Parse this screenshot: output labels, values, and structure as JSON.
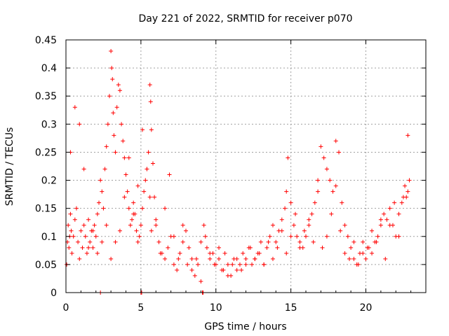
{
  "chart_data": {
    "type": "scatter",
    "title": "Day 221 of 2022, SRMTID for receiver p070",
    "xlabel": "GPS time / hours",
    "ylabel": "SRMTID / TECUs",
    "xlim": [
      0,
      24
    ],
    "ylim": [
      0,
      0.45
    ],
    "xticks": [
      0,
      5,
      10,
      15,
      20
    ],
    "xtick_labels": [
      "0",
      "5",
      "10",
      "15",
      "20"
    ],
    "yticks": [
      0,
      0.05,
      0.1,
      0.15,
      0.2,
      0.25,
      0.3,
      0.35,
      0.4,
      0.45
    ],
    "ytick_labels": [
      "0",
      "0.05",
      "0.1",
      "0.15",
      "0.2",
      "0.25",
      "0.3",
      "0.35",
      "0.4",
      "0.45"
    ],
    "grid": true,
    "marker": "+",
    "color": "#ff0000",
    "series": [
      {
        "name": "SRMTID",
        "x": [
          0.05,
          0.1,
          0.15,
          0.2,
          0.25,
          0.3,
          0.35,
          0.4,
          0.5,
          0.6,
          0.7,
          0.8,
          0.9,
          1.0,
          1.1,
          1.2,
          1.3,
          1.4,
          1.5,
          1.6,
          1.7,
          1.8,
          1.9,
          2.0,
          2.1,
          2.2,
          2.3,
          2.4,
          2.5,
          2.6,
          2.7,
          2.8,
          2.9,
          3.0,
          3.05,
          3.1,
          3.15,
          3.2,
          3.3,
          3.4,
          3.5,
          3.6,
          3.7,
          3.8,
          3.9,
          4.0,
          4.1,
          4.2,
          4.3,
          4.4,
          4.5,
          4.6,
          4.7,
          4.8,
          4.9,
          5.0,
          5.1,
          5.2,
          5.3,
          5.4,
          5.5,
          5.6,
          5.65,
          5.7,
          5.8,
          5.9,
          6.0,
          6.2,
          6.4,
          6.6,
          6.8,
          7.0,
          7.2,
          7.4,
          7.6,
          7.8,
          8.0,
          8.2,
          8.4,
          8.6,
          8.8,
          9.0,
          9.2,
          9.4,
          9.6,
          9.8,
          10.0,
          10.2,
          10.4,
          10.6,
          10.8,
          11.0,
          11.2,
          11.4,
          11.6,
          11.8,
          12.0,
          12.2,
          12.4,
          12.6,
          12.8,
          13.0,
          13.2,
          13.4,
          13.6,
          13.8,
          14.0,
          14.2,
          14.4,
          14.6,
          14.7,
          14.8,
          15.0,
          15.2,
          15.4,
          15.6,
          15.8,
          16.0,
          16.2,
          16.4,
          16.6,
          16.8,
          17.0,
          17.2,
          17.4,
          17.6,
          17.8,
          18.0,
          18.2,
          18.4,
          18.6,
          18.8,
          19.0,
          19.2,
          19.4,
          19.6,
          19.8,
          20.0,
          20.2,
          20.4,
          20.6,
          20.8,
          21.0,
          21.2,
          21.4,
          21.6,
          21.8,
          22.0,
          22.2,
          22.4,
          22.6,
          22.7,
          22.8,
          22.9,
          0.3,
          0.6,
          0.9,
          1.2,
          1.5,
          1.8,
          2.1,
          2.4,
          2.7,
          3.0,
          3.3,
          3.6,
          3.9,
          4.2,
          4.5,
          4.8,
          5.1,
          5.4,
          5.7,
          6.0,
          6.3,
          6.6,
          6.9,
          7.2,
          7.5,
          7.8,
          8.1,
          8.4,
          8.7,
          9.0,
          9.3,
          9.6,
          9.9,
          10.2,
          10.5,
          10.8,
          11.1,
          11.4,
          11.7,
          12.0,
          12.3,
          12.6,
          12.9,
          13.2,
          13.5,
          13.8,
          14.1,
          14.4,
          14.7,
          15.0,
          15.3,
          15.6,
          15.9,
          16.2,
          16.5,
          16.8,
          17.1,
          17.4,
          17.7,
          18.0,
          18.3,
          18.6,
          18.9,
          19.2,
          19.5,
          19.8,
          20.1,
          20.4,
          20.7,
          21.0,
          21.3,
          21.6,
          21.9,
          22.2,
          22.5,
          22.8,
          2.3,
          5.0,
          5.05,
          9.1,
          9.15,
          5.6
        ],
        "y": [
          0.05,
          0.09,
          0.12,
          0.08,
          0.1,
          0.14,
          0.11,
          0.07,
          0.1,
          0.13,
          0.15,
          0.09,
          0.06,
          0.11,
          0.08,
          0.12,
          0.1,
          0.07,
          0.13,
          0.09,
          0.11,
          0.08,
          0.12,
          0.1,
          0.14,
          0.16,
          0.2,
          0.18,
          0.15,
          0.22,
          0.26,
          0.3,
          0.35,
          0.43,
          0.4,
          0.38,
          0.32,
          0.28,
          0.25,
          0.33,
          0.37,
          0.36,
          0.3,
          0.27,
          0.24,
          0.21,
          0.18,
          0.15,
          0.12,
          0.13,
          0.16,
          0.14,
          0.11,
          0.09,
          0.1,
          0.12,
          0.15,
          0.18,
          0.2,
          0.22,
          0.25,
          0.37,
          0.34,
          0.29,
          0.23,
          0.17,
          0.12,
          0.09,
          0.07,
          0.06,
          0.08,
          0.1,
          0.05,
          0.04,
          0.07,
          0.09,
          0.11,
          0.08,
          0.06,
          0.03,
          0.05,
          0.09,
          0.12,
          0.08,
          0.06,
          0.07,
          0.05,
          0.06,
          0.04,
          0.07,
          0.05,
          0.03,
          0.06,
          0.04,
          0.05,
          0.07,
          0.06,
          0.08,
          0.05,
          0.06,
          0.07,
          0.09,
          0.05,
          0.08,
          0.1,
          0.12,
          0.09,
          0.11,
          0.13,
          0.15,
          0.18,
          0.24,
          0.16,
          0.12,
          0.1,
          0.09,
          0.08,
          0.1,
          0.12,
          0.14,
          0.16,
          0.2,
          0.26,
          0.24,
          0.22,
          0.2,
          0.18,
          0.27,
          0.25,
          0.16,
          0.12,
          0.1,
          0.08,
          0.06,
          0.05,
          0.07,
          0.09,
          0.06,
          0.08,
          0.07,
          0.09,
          0.1,
          0.12,
          0.14,
          0.13,
          0.15,
          0.12,
          0.1,
          0.14,
          0.16,
          0.19,
          0.17,
          0.18,
          0.2,
          0.25,
          0.33,
          0.3,
          0.22,
          0.08,
          0.11,
          0.07,
          0.09,
          0.12,
          0.06,
          0.09,
          0.11,
          0.17,
          0.24,
          0.14,
          0.19,
          0.29,
          0.22,
          0.11,
          0.13,
          0.07,
          0.15,
          0.21,
          0.1,
          0.06,
          0.12,
          0.05,
          0.04,
          0.06,
          0.02,
          0.1,
          0.07,
          0.05,
          0.08,
          0.04,
          0.03,
          0.05,
          0.06,
          0.04,
          0.05,
          0.08,
          0.06,
          0.07,
          0.05,
          0.09,
          0.06,
          0.08,
          0.11,
          0.07,
          0.1,
          0.14,
          0.08,
          0.11,
          0.13,
          0.09,
          0.18,
          0.08,
          0.1,
          0.14,
          0.19,
          0.11,
          0.07,
          0.06,
          0.09,
          0.05,
          0.07,
          0.08,
          0.11,
          0.09,
          0.13,
          0.06,
          0.12,
          0.16,
          0.1,
          0.17,
          0.28,
          0.0,
          0.0,
          0.0,
          0.0,
          0.0,
          0.17
        ]
      }
    ]
  }
}
